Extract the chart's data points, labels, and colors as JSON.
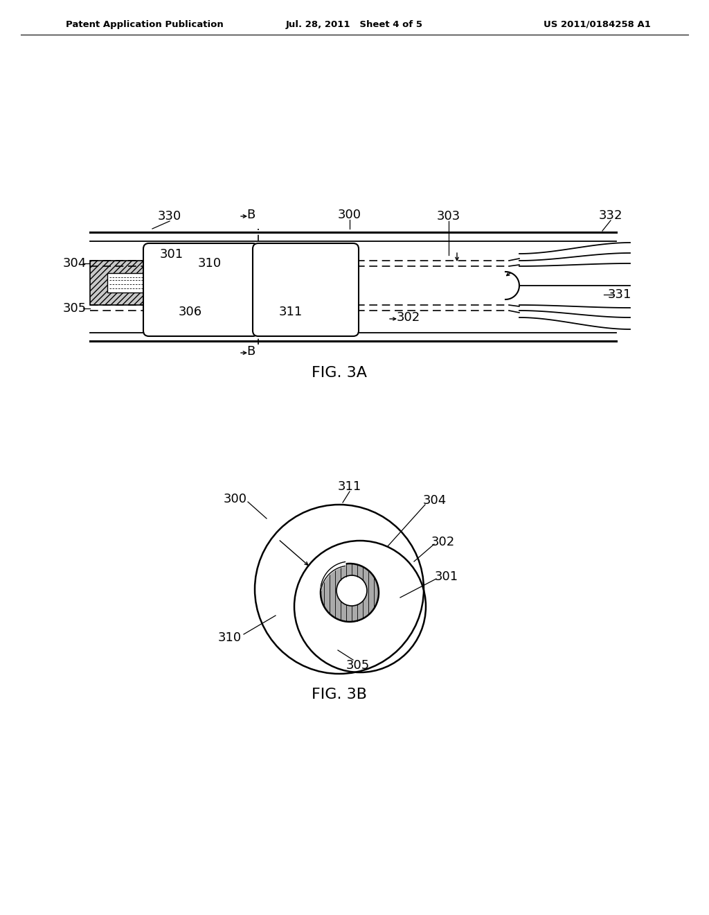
{
  "bg_color": "#ffffff",
  "header_left": "Patent Application Publication",
  "header_center": "Jul. 28, 2011   Sheet 4 of 5",
  "header_right": "US 2011/0184258 A1",
  "fig3a_label": "FIG. 3A",
  "fig3b_label": "FIG. 3B"
}
